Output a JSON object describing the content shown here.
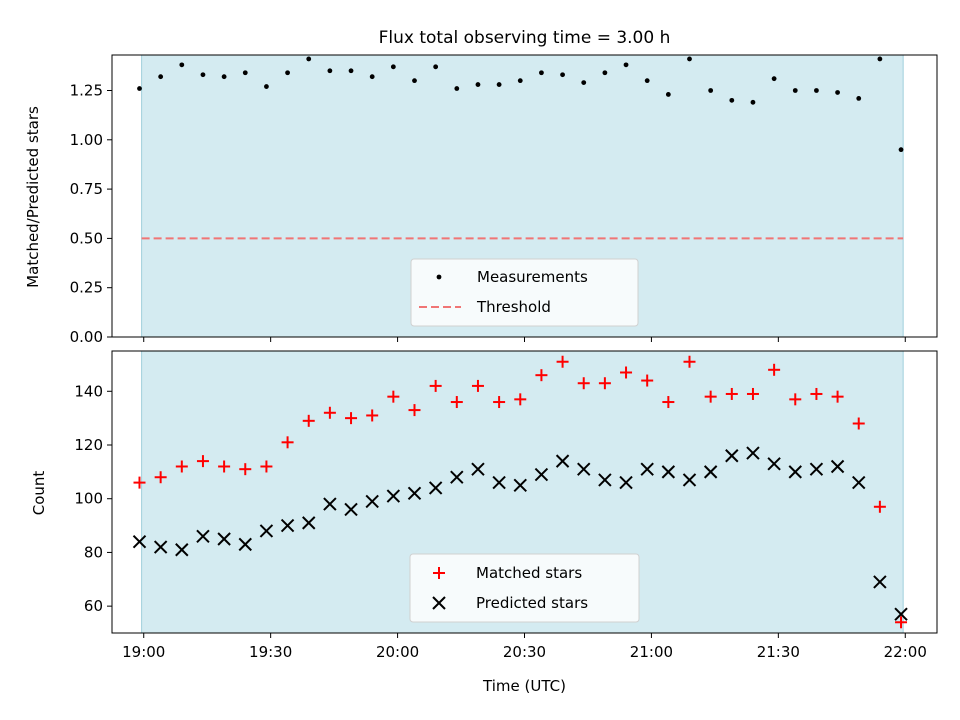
{
  "title": "Flux total observing time = 3.00 h",
  "colors": {
    "band": "#d4ebf1",
    "band_edge": "#9fcfdb",
    "measurement": "#000000",
    "threshold": "#f07575",
    "matched": "#ff0000",
    "predicted": "#000000"
  },
  "chart_data": [
    {
      "type": "scatter",
      "ylabel": "Matched/Predicted stars",
      "ylim": [
        0,
        1.43
      ],
      "yticks": [
        "0.00",
        "0.25",
        "0.50",
        "0.75",
        "1.00",
        "1.25"
      ],
      "x_range_minutes": [
        -7.5,
        187.5
      ],
      "shaded_span_minutes": [
        -0.5,
        179.5
      ],
      "threshold": 0.5,
      "legend": {
        "placement": "lower center",
        "entries": [
          "Measurements",
          "Threshold"
        ]
      },
      "series": [
        {
          "name": "Measurements",
          "x": [
            "18:59",
            "19:04",
            "19:09",
            "19:14",
            "19:19",
            "19:24",
            "19:29",
            "19:34",
            "19:39",
            "19:44",
            "19:49",
            "19:54",
            "19:59",
            "20:04",
            "20:09",
            "20:14",
            "20:19",
            "20:24",
            "20:29",
            "20:34",
            "20:39",
            "20:44",
            "20:49",
            "20:54",
            "20:59",
            "21:04",
            "21:09",
            "21:14",
            "21:19",
            "21:24",
            "21:29",
            "21:34",
            "21:39",
            "21:44",
            "21:49",
            "21:54",
            "21:59"
          ],
          "values": [
            1.26,
            1.32,
            1.38,
            1.33,
            1.32,
            1.34,
            1.27,
            1.34,
            1.41,
            1.35,
            1.35,
            1.32,
            1.37,
            1.3,
            1.37,
            1.26,
            1.28,
            1.28,
            1.3,
            1.34,
            1.33,
            1.29,
            1.34,
            1.38,
            1.3,
            1.23,
            1.41,
            1.25,
            1.2,
            1.19,
            1.31,
            1.25,
            1.25,
            1.24,
            1.21,
            1.41,
            0.95
          ]
        }
      ]
    },
    {
      "type": "scatter",
      "ylabel": "Count",
      "xlabel": "Time (UTC)",
      "ylim": [
        50,
        155
      ],
      "yticks": [
        "60",
        "80",
        "100",
        "120",
        "140"
      ],
      "xticks": [
        "19:00",
        "19:30",
        "20:00",
        "20:30",
        "21:00",
        "21:30",
        "22:00"
      ],
      "legend": {
        "placement": "lower center",
        "entries": [
          "Matched stars",
          "Predicted stars"
        ]
      },
      "series": [
        {
          "name": "Matched stars",
          "marker": "+",
          "x": [
            "18:59",
            "19:04",
            "19:09",
            "19:14",
            "19:19",
            "19:24",
            "19:29",
            "19:34",
            "19:39",
            "19:44",
            "19:49",
            "19:54",
            "19:59",
            "20:04",
            "20:09",
            "20:14",
            "20:19",
            "20:24",
            "20:29",
            "20:34",
            "20:39",
            "20:44",
            "20:49",
            "20:54",
            "20:59",
            "21:04",
            "21:09",
            "21:14",
            "21:19",
            "21:24",
            "21:29",
            "21:34",
            "21:39",
            "21:44",
            "21:49",
            "21:54",
            "21:59"
          ],
          "values": [
            106,
            108,
            112,
            114,
            112,
            111,
            112,
            121,
            129,
            132,
            130,
            131,
            138,
            133,
            142,
            136,
            142,
            136,
            137,
            146,
            151,
            143,
            143,
            147,
            144,
            136,
            151,
            138,
            139,
            139,
            148,
            137,
            139,
            138,
            128,
            97,
            54
          ]
        },
        {
          "name": "Predicted stars",
          "marker": "x",
          "x": [
            "18:59",
            "19:04",
            "19:09",
            "19:14",
            "19:19",
            "19:24",
            "19:29",
            "19:34",
            "19:39",
            "19:44",
            "19:49",
            "19:54",
            "19:59",
            "20:04",
            "20:09",
            "20:14",
            "20:19",
            "20:24",
            "20:29",
            "20:34",
            "20:39",
            "20:44",
            "20:49",
            "20:54",
            "20:59",
            "21:04",
            "21:09",
            "21:14",
            "21:19",
            "21:24",
            "21:29",
            "21:34",
            "21:39",
            "21:44",
            "21:49",
            "21:54",
            "21:59"
          ],
          "values": [
            84,
            82,
            81,
            86,
            85,
            83,
            88,
            90,
            91,
            98,
            96,
            99,
            101,
            102,
            104,
            108,
            111,
            106,
            105,
            109,
            114,
            111,
            107,
            106,
            111,
            110,
            107,
            110,
            116,
            117,
            113,
            110,
            111,
            112,
            106,
            69,
            57
          ]
        }
      ]
    }
  ]
}
